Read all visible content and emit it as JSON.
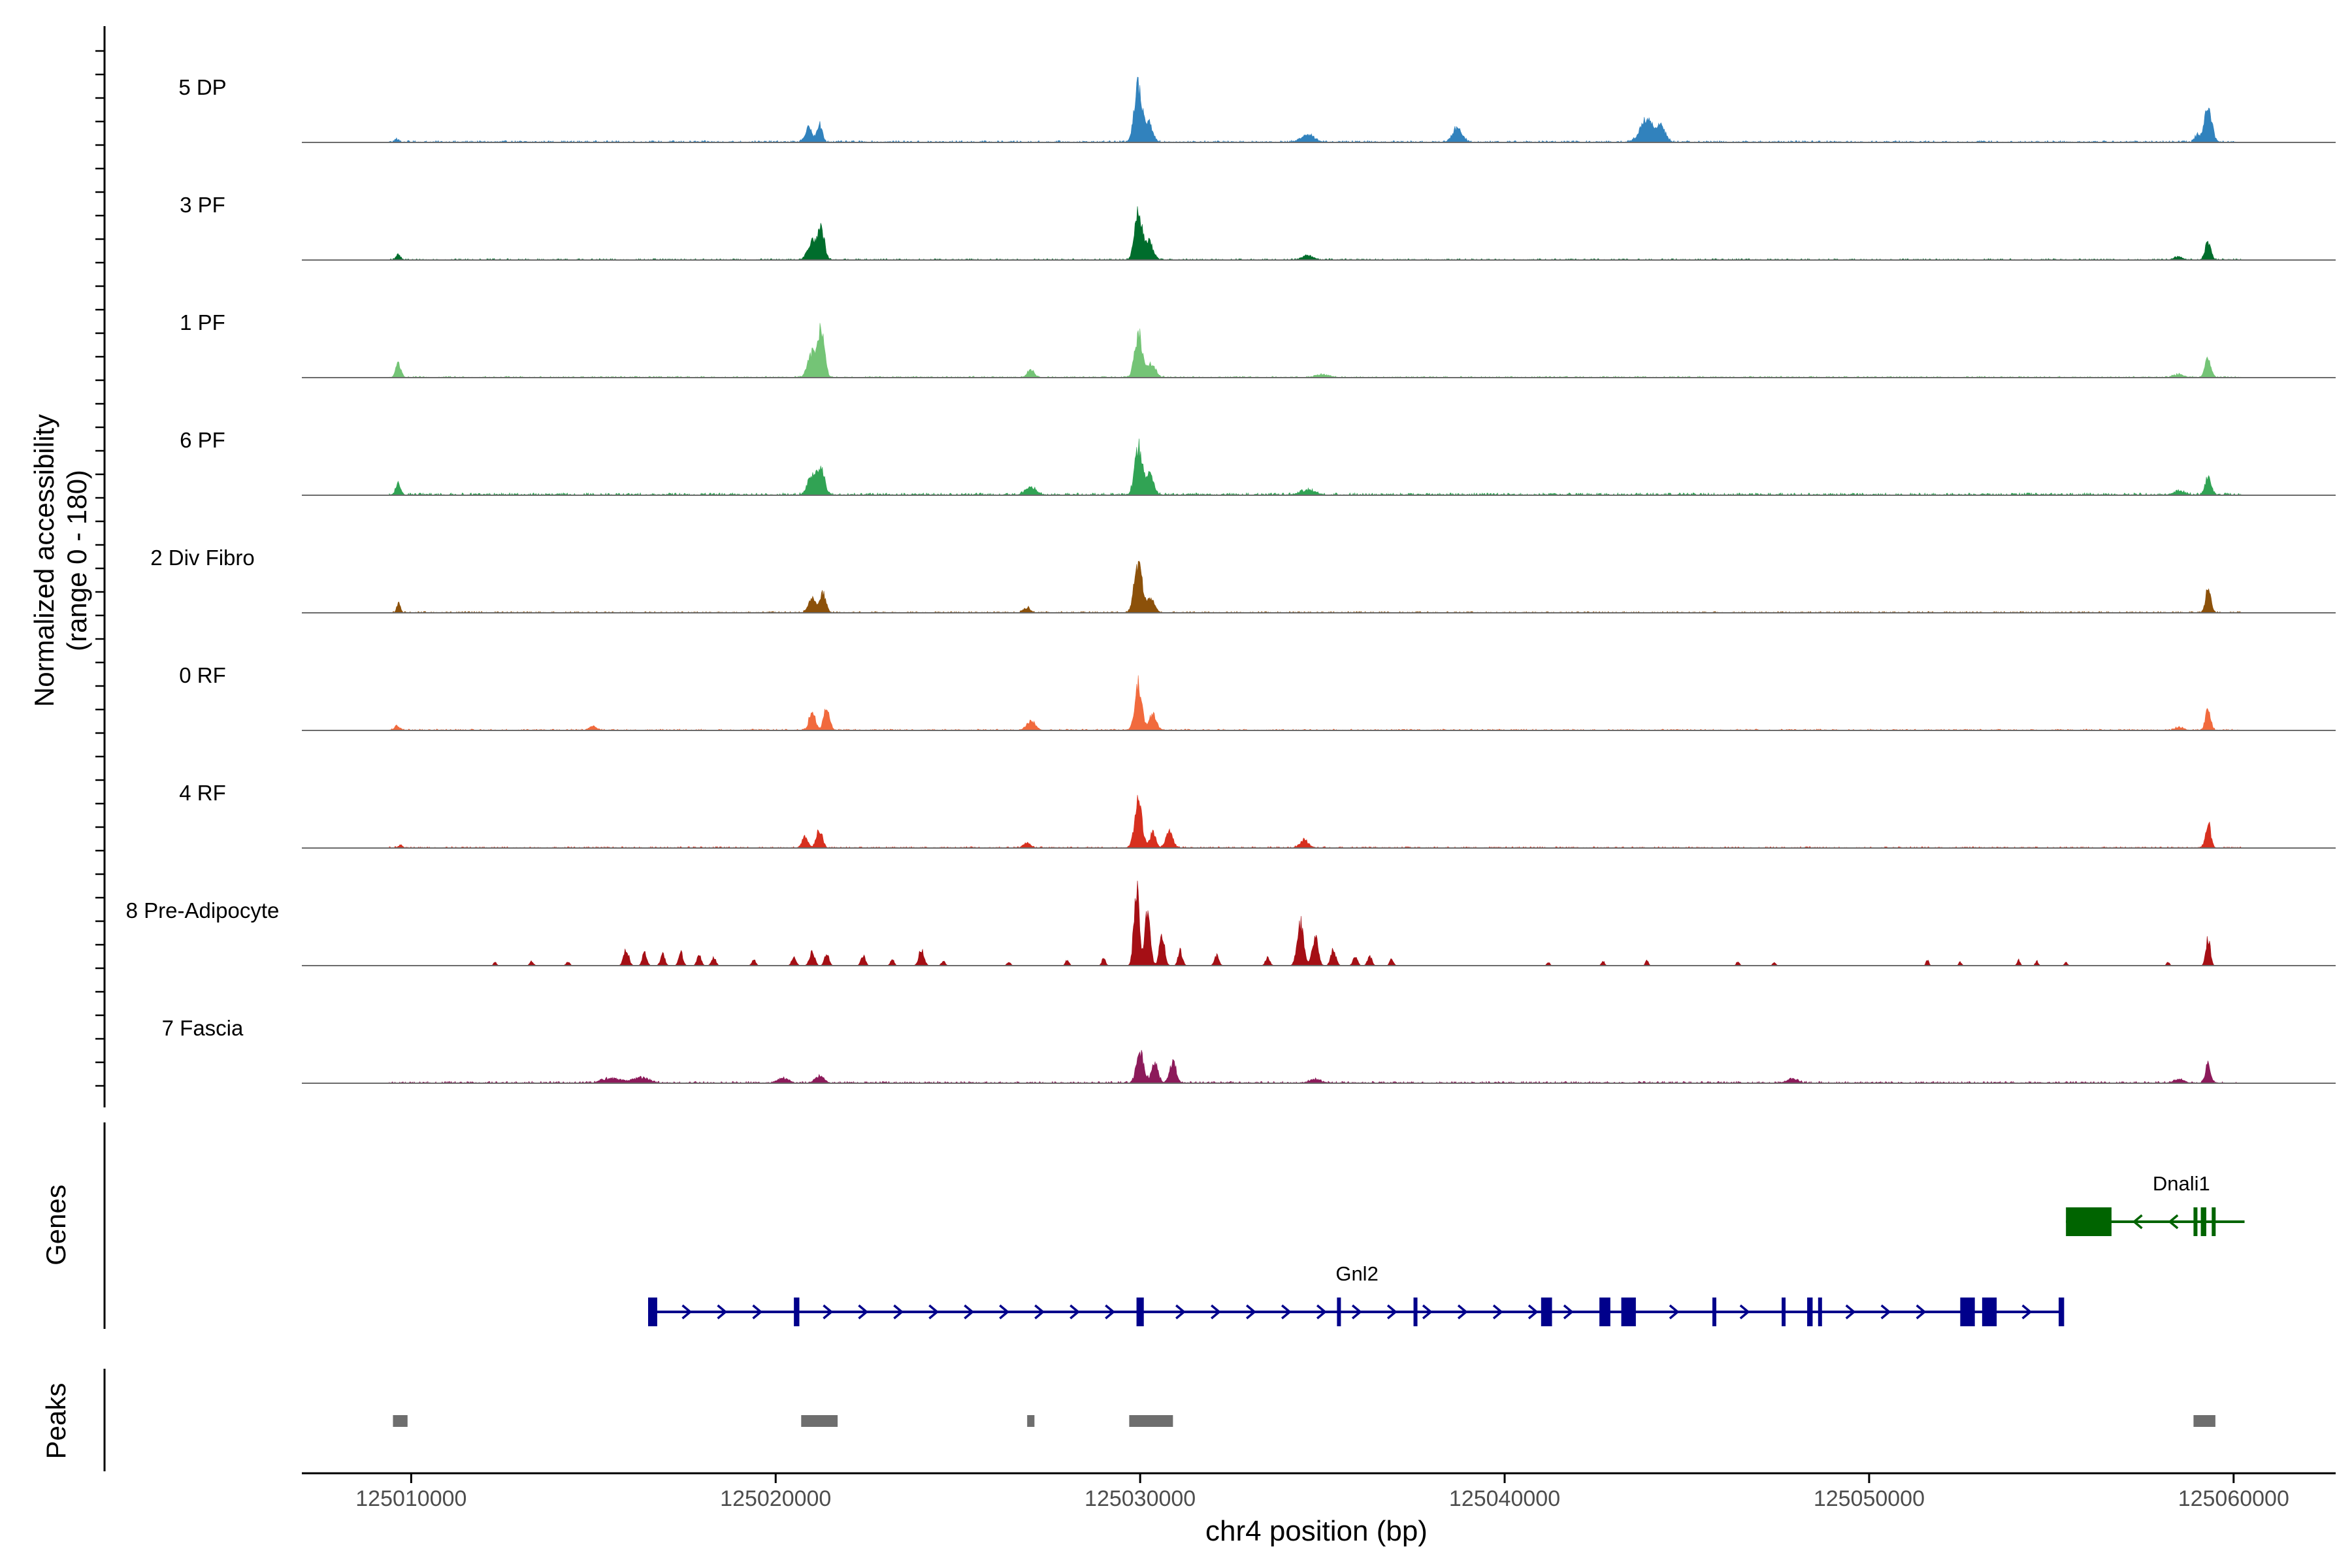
{
  "chart_data": {
    "type": "area",
    "title": "",
    "xlabel": "chr4 position (bp)",
    "ylabel_line1": "Normalized accessibility",
    "ylabel_line2": "(range 0 - 180)",
    "ylim": [
      0,
      180
    ],
    "xlim": [
      125007000,
      125062800
    ],
    "x_ticks": [
      125010000,
      125020000,
      125030000,
      125040000,
      125050000,
      125060000
    ],
    "x_tick_labels": [
      "125010000",
      "125020000",
      "125030000",
      "125040000",
      "125050000",
      "125060000"
    ],
    "genes_label": "Genes",
    "peaks_label": "Peaks",
    "tracks": [
      {
        "name": "5 DP",
        "color": "#3182bd",
        "noise": 4,
        "noise_end": 125060200,
        "peaks": [
          [
            125009600,
            6,
            60
          ],
          [
            125020900,
            30,
            90
          ],
          [
            125021200,
            42,
            70
          ],
          [
            125029950,
            122,
            110
          ],
          [
            125030250,
            40,
            100
          ],
          [
            125034600,
            16,
            180
          ],
          [
            125038700,
            30,
            130
          ],
          [
            125043900,
            48,
            180
          ],
          [
            125044300,
            30,
            120
          ],
          [
            125059000,
            14,
            70
          ],
          [
            125059300,
            78,
            100
          ]
        ]
      },
      {
        "name": "3 PF",
        "color": "#006d2c",
        "noise": 3,
        "noise_end": 125060200,
        "peaks": [
          [
            125009650,
            12,
            60
          ],
          [
            125021000,
            40,
            120
          ],
          [
            125021250,
            62,
            90
          ],
          [
            125029950,
            102,
            100
          ],
          [
            125030250,
            38,
            110
          ],
          [
            125034600,
            10,
            130
          ],
          [
            125058500,
            6,
            120
          ],
          [
            125059300,
            38,
            80
          ]
        ]
      },
      {
        "name": "1 PF",
        "color": "#74c476",
        "noise": 3,
        "noise_end": 125060200,
        "peaks": [
          [
            125009650,
            30,
            70
          ],
          [
            125021000,
            50,
            120
          ],
          [
            125021250,
            94,
            90
          ],
          [
            125027000,
            18,
            90
          ],
          [
            125029950,
            94,
            100
          ],
          [
            125030300,
            30,
            120
          ],
          [
            125035000,
            6,
            200
          ],
          [
            125058500,
            6,
            150
          ],
          [
            125059300,
            42,
            80
          ]
        ]
      },
      {
        "name": "6 PF",
        "color": "#31a354",
        "noise": 5,
        "noise_end": 125060200,
        "peaks": [
          [
            125009650,
            22,
            70
          ],
          [
            125021000,
            44,
            120
          ],
          [
            125021250,
            56,
            90
          ],
          [
            125027000,
            16,
            150
          ],
          [
            125029950,
            104,
            100
          ],
          [
            125030250,
            44,
            110
          ],
          [
            125034600,
            10,
            200
          ],
          [
            125058500,
            8,
            150
          ],
          [
            125059300,
            40,
            80
          ]
        ]
      },
      {
        "name": "2 Div Fibro",
        "color": "#8c510a",
        "noise": 3,
        "noise_end": 125060200,
        "peaks": [
          [
            125009650,
            20,
            50
          ],
          [
            125021000,
            30,
            100
          ],
          [
            125021300,
            42,
            80
          ],
          [
            125026900,
            10,
            100
          ],
          [
            125029950,
            104,
            110
          ],
          [
            125030300,
            30,
            100
          ],
          [
            125059300,
            54,
            70
          ]
        ]
      },
      {
        "name": "0 RF",
        "color": "#f16a3d",
        "noise": 3,
        "noise_end": 125060200,
        "peaks": [
          [
            125009600,
            10,
            70
          ],
          [
            125015000,
            8,
            100
          ],
          [
            125021000,
            44,
            80
          ],
          [
            125021400,
            52,
            80
          ],
          [
            125027000,
            20,
            120
          ],
          [
            125029950,
            98,
            100
          ],
          [
            125030350,
            38,
            90
          ],
          [
            125058500,
            6,
            120
          ],
          [
            125059300,
            46,
            70
          ]
        ]
      },
      {
        "name": "4 RF",
        "color": "#d7301f",
        "noise": 3,
        "noise_end": 125060200,
        "peaks": [
          [
            125009700,
            6,
            60
          ],
          [
            125020800,
            24,
            80
          ],
          [
            125021200,
            40,
            80
          ],
          [
            125026900,
            10,
            100
          ],
          [
            125029950,
            100,
            100
          ],
          [
            125030350,
            34,
            80
          ],
          [
            125030800,
            40,
            90
          ],
          [
            125034500,
            16,
            120
          ],
          [
            125059300,
            58,
            70
          ]
        ]
      },
      {
        "name": "8 Pre-Adipocyte",
        "color": "#a50f15",
        "noise": 0,
        "noise_end": 125060200,
        "peaks": [
          [
            125012300,
            8,
            40
          ],
          [
            125013300,
            10,
            50
          ],
          [
            125014300,
            8,
            50
          ],
          [
            125015900,
            34,
            70
          ],
          [
            125016400,
            30,
            60
          ],
          [
            125016900,
            24,
            60
          ],
          [
            125017400,
            28,
            60
          ],
          [
            125017900,
            22,
            60
          ],
          [
            125018300,
            18,
            60
          ],
          [
            125019400,
            14,
            50
          ],
          [
            125020500,
            18,
            60
          ],
          [
            125021000,
            30,
            70
          ],
          [
            125021400,
            28,
            60
          ],
          [
            125022400,
            22,
            60
          ],
          [
            125023200,
            14,
            50
          ],
          [
            125024000,
            36,
            70
          ],
          [
            125024600,
            10,
            50
          ],
          [
            125026400,
            8,
            50
          ],
          [
            125028000,
            12,
            50
          ],
          [
            125029000,
            16,
            50
          ],
          [
            125029900,
            176,
            70
          ],
          [
            125030200,
            104,
            80
          ],
          [
            125030600,
            70,
            70
          ],
          [
            125031100,
            32,
            60
          ],
          [
            125032100,
            22,
            60
          ],
          [
            125033500,
            18,
            60
          ],
          [
            125034400,
            92,
            90
          ],
          [
            125034800,
            64,
            80
          ],
          [
            125035300,
            34,
            70
          ],
          [
            125035900,
            20,
            60
          ],
          [
            125036300,
            20,
            60
          ],
          [
            125036900,
            16,
            50
          ],
          [
            125041200,
            8,
            40
          ],
          [
            125042700,
            10,
            40
          ],
          [
            125043900,
            12,
            40
          ],
          [
            125046400,
            10,
            40
          ],
          [
            125047400,
            8,
            40
          ],
          [
            125051600,
            12,
            40
          ],
          [
            125052500,
            8,
            40
          ],
          [
            125054100,
            12,
            40
          ],
          [
            125054600,
            10,
            40
          ],
          [
            125055400,
            8,
            40
          ],
          [
            125058200,
            8,
            40
          ],
          [
            125059300,
            60,
            60
          ]
        ]
      },
      {
        "name": "7 Fascia",
        "color": "#8c1a5a",
        "noise": 4,
        "noise_end": 125060200,
        "peaks": [
          [
            125015500,
            10,
            250
          ],
          [
            125016300,
            12,
            200
          ],
          [
            125020200,
            10,
            150
          ],
          [
            125021200,
            16,
            120
          ],
          [
            125030000,
            64,
            100
          ],
          [
            125030400,
            40,
            90
          ],
          [
            125030900,
            46,
            90
          ],
          [
            125034800,
            8,
            150
          ],
          [
            125047900,
            8,
            150
          ],
          [
            125058500,
            8,
            150
          ],
          [
            125059300,
            42,
            70
          ]
        ]
      }
    ],
    "genes": [
      {
        "name": "Gnl2",
        "color": "#00008b",
        "start": 125016600,
        "end": 125055300,
        "strand": "+",
        "exons": [
          [
            125016500,
            125016750
          ],
          [
            125020500,
            125020650
          ],
          [
            125029900,
            125030100
          ],
          [
            125035400,
            125035500
          ],
          [
            125037500,
            125037600
          ],
          [
            125041000,
            125041300
          ],
          [
            125042600,
            125042900
          ],
          [
            125043200,
            125043600
          ],
          [
            125045700,
            125045800
          ],
          [
            125047600,
            125047700
          ],
          [
            125048300,
            125048450
          ],
          [
            125048600,
            125048700
          ],
          [
            125052500,
            125052900
          ],
          [
            125053100,
            125053500
          ],
          [
            125055200,
            125055350
          ]
        ]
      },
      {
        "name": "Dnali1",
        "color": "#006400",
        "start": 125055400,
        "end": 125060300,
        "strand": "-",
        "exons": [
          [
            125055400,
            125056650
          ],
          [
            125058900,
            125059000
          ],
          [
            125059100,
            125059250
          ],
          [
            125059400,
            125059500
          ]
        ]
      }
    ],
    "peaks": [
      [
        125009500,
        125009900
      ],
      [
        125020700,
        125021700
      ],
      [
        125026900,
        125027100
      ],
      [
        125029700,
        125030900
      ],
      [
        125058900,
        125059500
      ]
    ]
  }
}
